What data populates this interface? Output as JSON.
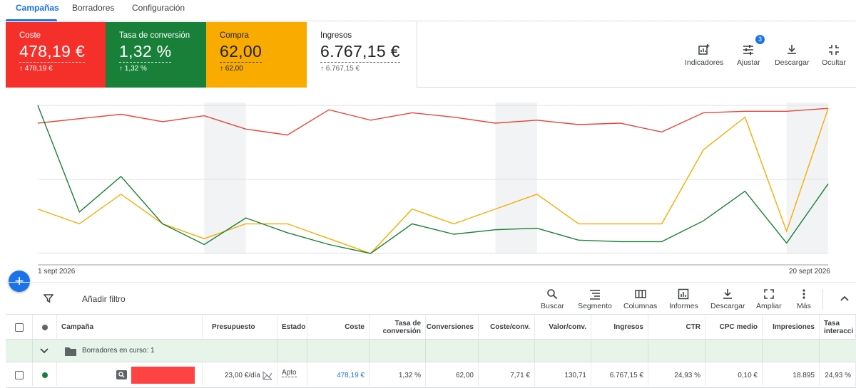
{
  "tabs": [
    {
      "label": "Campañas",
      "active": true
    },
    {
      "label": "Borradores",
      "active": false
    },
    {
      "label": "Configuración",
      "active": false
    }
  ],
  "scorecards": [
    {
      "label": "Coste",
      "value": "478,19 €",
      "delta": "478,19 €",
      "color": "#f5302b"
    },
    {
      "label": "Tasa de conversión",
      "value": "1,32 %",
      "delta": "1,32 %",
      "color": "#188038"
    },
    {
      "label": "Compra",
      "value": "62,00",
      "delta": "62,00",
      "color": "#f9ab00"
    },
    {
      "label": "Ingresos",
      "value": "6.767,15 €",
      "delta": "6.767,15 €",
      "color": "#ffffff"
    }
  ],
  "card_tools": {
    "indicadores": "Indicadores",
    "ajustar": "Ajustar",
    "ajustar_badge": "3",
    "descargar": "Descargar",
    "ocultar": "Ocultar"
  },
  "chart_data": {
    "type": "line",
    "x_start_label": "1 sept 2026",
    "x_end_label": "20 sept 2026",
    "x": [
      1,
      2,
      3,
      4,
      5,
      6,
      7,
      8,
      9,
      10,
      11,
      12,
      13,
      14,
      15,
      16,
      17,
      18,
      19,
      20
    ],
    "series": [
      {
        "key": "coste",
        "color": "#ea4335",
        "values": [
          0.88,
          0.91,
          0.94,
          0.89,
          0.93,
          0.84,
          0.8,
          0.97,
          0.9,
          0.95,
          0.92,
          0.88,
          0.9,
          0.87,
          0.88,
          0.82,
          0.95,
          0.96,
          0.96,
          0.98
        ]
      },
      {
        "key": "compra",
        "color": "#f9ab00",
        "values": [
          0.3,
          0.2,
          0.4,
          0.2,
          0.1,
          0.2,
          0.2,
          0.1,
          0.0,
          0.3,
          0.2,
          0.3,
          0.4,
          0.2,
          0.2,
          0.2,
          0.7,
          0.92,
          0.15,
          0.98
        ]
      },
      {
        "key": "conversion",
        "color": "#188038",
        "values": [
          1.0,
          0.28,
          0.52,
          0.2,
          0.06,
          0.24,
          0.14,
          0.06,
          0.0,
          0.2,
          0.13,
          0.16,
          0.17,
          0.09,
          0.08,
          0.08,
          0.22,
          0.42,
          0.07,
          0.47
        ]
      }
    ],
    "weekend_shading": [
      [
        5,
        6
      ],
      [
        12,
        13
      ],
      [
        19,
        20
      ]
    ],
    "grid": true
  },
  "filter": {
    "label": "Añadir filtro"
  },
  "table_tools": [
    "Buscar",
    "Segmento",
    "Columnas",
    "Informes",
    "Descargar",
    "Ampliar",
    "Más"
  ],
  "table": {
    "headers": [
      "Campaña",
      "Presupuesto",
      "Estado",
      "Coste",
      "Tasa de conversión",
      "Conversiones",
      "Coste/conv.",
      "Valor/conv.",
      "Ingresos",
      "CTR",
      "CPC medio",
      "Impresiones",
      "Tasa interacci"
    ],
    "group_label": "Borradores en curso: 1",
    "row": {
      "status_color": "#188038",
      "presupuesto": "23,00 €/día",
      "estado": "Apto",
      "coste": "478,19 €",
      "tasa_conversion": "1,32 %",
      "conversiones": "62,00",
      "coste_conv": "7,71 €",
      "valor_conv": "130,71",
      "ingresos": "6.767,15 €",
      "ctr": "24,93 %",
      "cpc_medio": "0,10 €",
      "impresiones": "18.895",
      "tasa_interaccion": "24,93 %"
    }
  }
}
